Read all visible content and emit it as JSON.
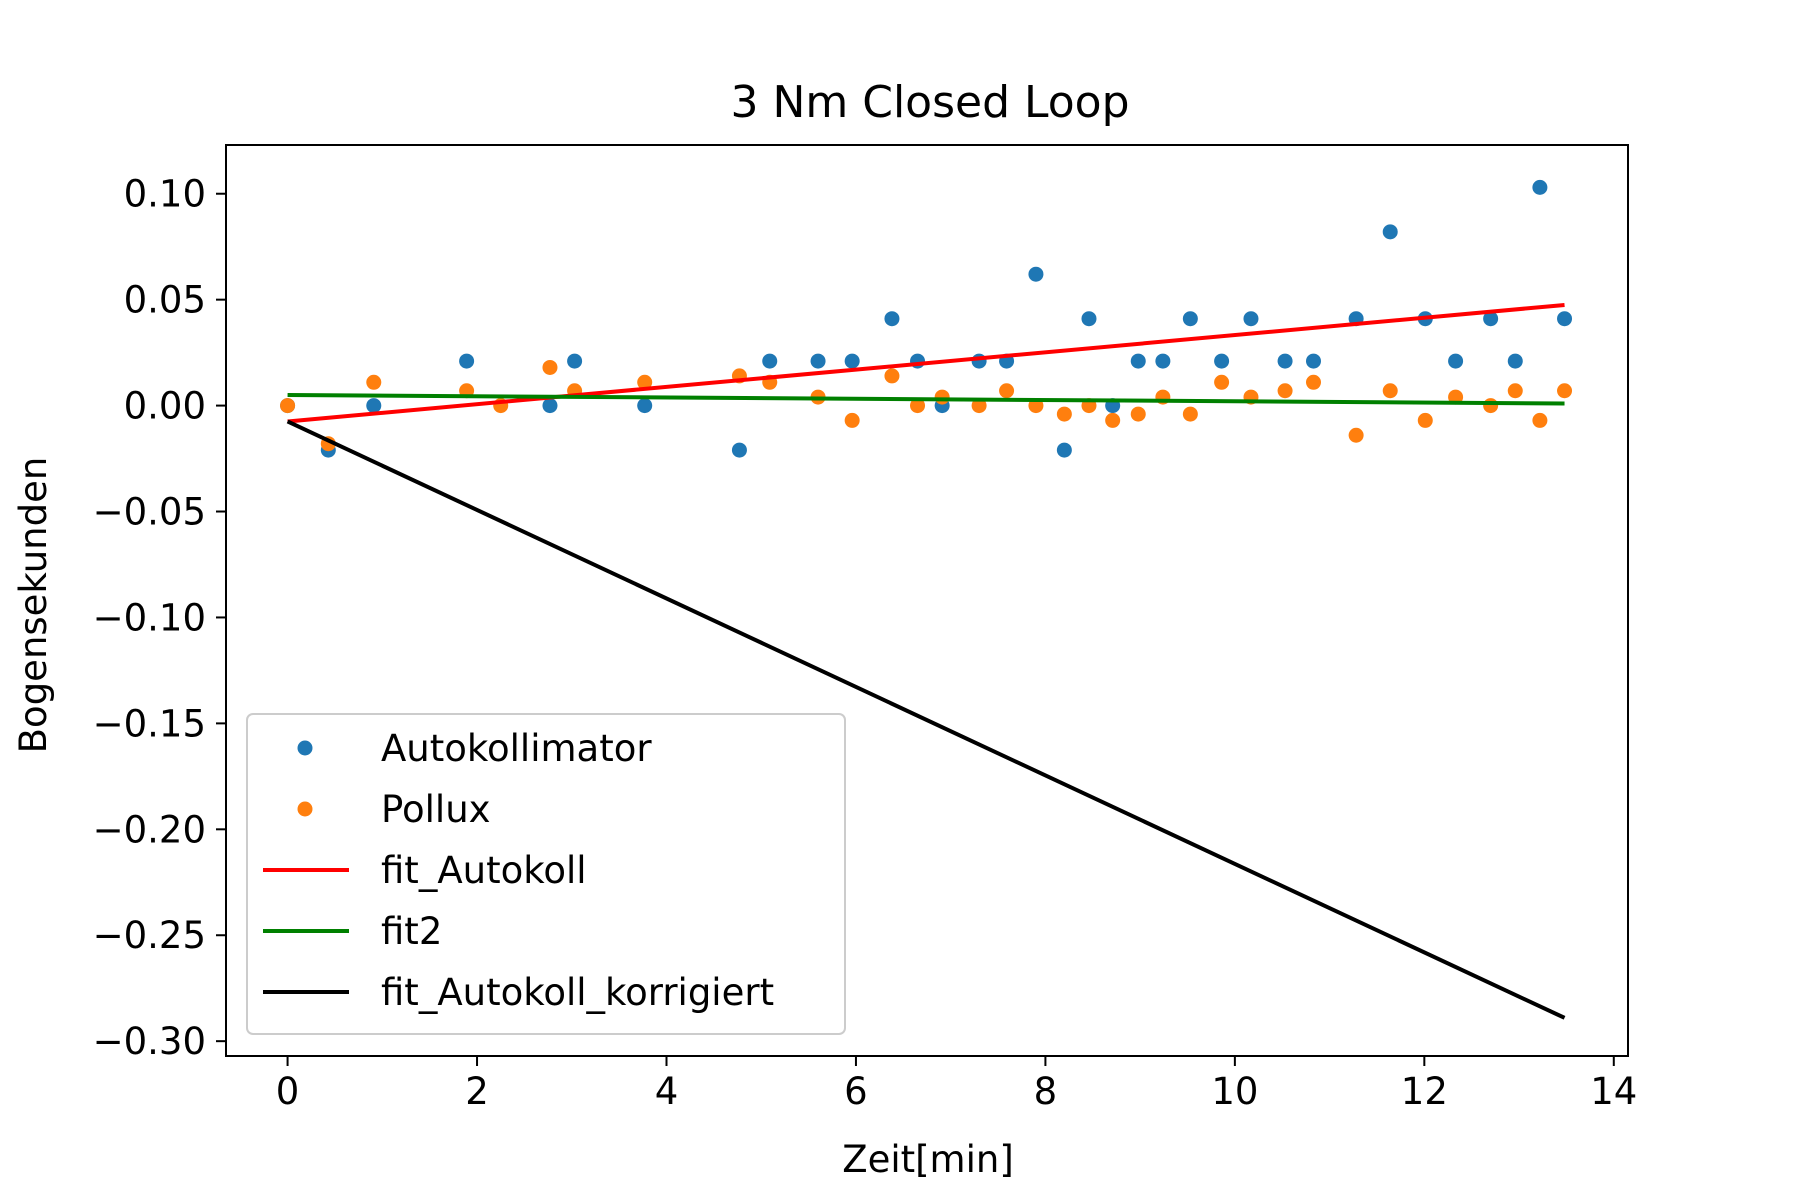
{
  "chart_data": {
    "type": "scatter",
    "title": "3 Nm Closed Loop",
    "xlabel": "Zeit[min]",
    "ylabel": "Bogensekunden",
    "xlim": [
      -0.65,
      14.15
    ],
    "ylim": [
      -0.307,
      0.123
    ],
    "xticks": [
      0,
      2,
      4,
      6,
      8,
      10,
      12,
      14
    ],
    "yticks": [
      0.1,
      0.05,
      0.0,
      -0.05,
      -0.1,
      -0.15,
      -0.2,
      -0.25,
      -0.3
    ],
    "xtick_labels": [
      "0",
      "2",
      "4",
      "6",
      "8",
      "10",
      "12",
      "14"
    ],
    "ytick_labels": [
      "0.10",
      "0.05",
      "0.00",
      "−0.05",
      "−0.10",
      "−0.15",
      "−0.20",
      "−0.25",
      "−0.30"
    ],
    "grid": false,
    "legend_position": "lower-left",
    "series": [
      {
        "name": "Autokollimator",
        "kind": "points",
        "color": "#1f77b4",
        "x": [
          0.0,
          0.43,
          0.91,
          1.89,
          2.77,
          3.03,
          3.77,
          4.77,
          5.09,
          5.6,
          5.96,
          6.38,
          6.65,
          6.91,
          7.3,
          7.59,
          7.9,
          8.2,
          8.46,
          8.71,
          8.98,
          9.24,
          9.53,
          9.86,
          10.17,
          10.53,
          10.83,
          11.28,
          11.64,
          12.01,
          12.33,
          12.7,
          12.96,
          13.22,
          13.48
        ],
        "y": [
          0.0,
          -0.021,
          0.0,
          0.021,
          0.0,
          0.021,
          0.0,
          -0.021,
          0.021,
          0.021,
          0.021,
          0.041,
          0.021,
          0.0,
          0.021,
          0.021,
          0.062,
          -0.021,
          0.041,
          0.0,
          0.021,
          0.021,
          0.041,
          0.021,
          0.041,
          0.021,
          0.021,
          0.041,
          0.082,
          0.041,
          0.021,
          0.041,
          0.021,
          0.103,
          0.041
        ]
      },
      {
        "name": "Pollux",
        "kind": "points",
        "color": "#ff7f0e",
        "x": [
          0.0,
          0.43,
          0.91,
          1.89,
          2.25,
          2.77,
          3.03,
          3.77,
          4.77,
          5.09,
          5.6,
          5.96,
          6.38,
          6.65,
          6.91,
          7.3,
          7.59,
          7.9,
          8.2,
          8.46,
          8.71,
          8.98,
          9.24,
          9.53,
          9.86,
          10.17,
          10.53,
          10.83,
          11.28,
          11.64,
          12.01,
          12.33,
          12.7,
          12.96,
          13.22,
          13.48
        ],
        "y": [
          0.0,
          -0.018,
          0.011,
          0.007,
          0.0,
          0.018,
          0.007,
          0.011,
          0.014,
          0.011,
          0.004,
          -0.007,
          0.014,
          0.0,
          0.004,
          0.0,
          0.007,
          0.0,
          -0.004,
          0.0,
          -0.007,
          -0.004,
          0.004,
          -0.004,
          0.011,
          0.004,
          0.007,
          0.011,
          -0.014,
          0.007,
          -0.007,
          0.004,
          0.0,
          0.007,
          -0.007,
          0.007
        ]
      },
      {
        "name": "fit_Autokoll",
        "kind": "line",
        "color": "#ff0000",
        "x": [
          0.0,
          13.48
        ],
        "y": [
          -0.0075,
          0.0475
        ]
      },
      {
        "name": "fit2",
        "kind": "line",
        "color": "#008000",
        "x": [
          0.0,
          13.48
        ],
        "y": [
          0.005,
          0.001
        ]
      },
      {
        "name": "fit_Autokoll_korrigiert",
        "kind": "line",
        "color": "#000000",
        "x": [
          0.0,
          13.48
        ],
        "y": [
          -0.0075,
          -0.289
        ]
      }
    ]
  }
}
